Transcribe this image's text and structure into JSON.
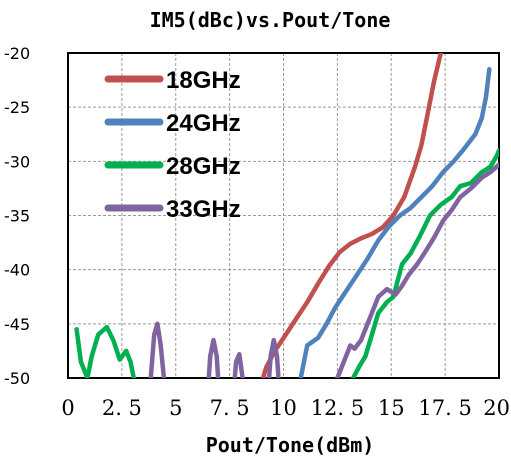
{
  "chart_data": {
    "type": "line",
    "title": "IM5(dBc)vs.Pout/Tone",
    "xlabel": "Pout/Tone(dBm)",
    "ylabel": "",
    "xlim": [
      0,
      20
    ],
    "ylim": [
      -50,
      -20
    ],
    "xticks": [
      0,
      2.5,
      5,
      7.5,
      10,
      12.5,
      15,
      17.5,
      20
    ],
    "xtick_labels": [
      "0",
      "2. 5",
      "5",
      "7. 5",
      "10",
      "12. 5",
      "15",
      "17. 5",
      "20"
    ],
    "yticks": [
      -50,
      -45,
      -40,
      -35,
      -30,
      -25,
      -20
    ],
    "ytick_labels": [
      "-50",
      "-45",
      "-40",
      "-35",
      "-30",
      "-25",
      "-20"
    ],
    "grid": true,
    "legend_position": "top-left",
    "series": [
      {
        "name": "18GHz",
        "color": "#c0504d",
        "points": [
          [
            8.9,
            -51
          ],
          [
            9.2,
            -49
          ],
          [
            9.6,
            -47.5
          ],
          [
            10.1,
            -46
          ],
          [
            10.6,
            -44.5
          ],
          [
            11.1,
            -43
          ],
          [
            11.6,
            -41.3
          ],
          [
            12.1,
            -39.7
          ],
          [
            12.6,
            -38.4
          ],
          [
            13.1,
            -37.6
          ],
          [
            13.6,
            -37.1
          ],
          [
            14.1,
            -36.7
          ],
          [
            14.6,
            -36.1
          ],
          [
            15.1,
            -35
          ],
          [
            15.6,
            -33.3
          ],
          [
            16.1,
            -30.5
          ],
          [
            16.4,
            -28.5
          ],
          [
            16.7,
            -25.5
          ],
          [
            17.0,
            -22.5
          ],
          [
            17.3,
            -20
          ]
        ]
      },
      {
        "name": "24GHz",
        "color": "#4f81bd",
        "points": [
          [
            10.7,
            -51
          ],
          [
            10.9,
            -49
          ],
          [
            11.1,
            -47
          ],
          [
            11.6,
            -46.3
          ],
          [
            12.0,
            -45
          ],
          [
            12.4,
            -43.5
          ],
          [
            12.9,
            -42
          ],
          [
            13.4,
            -40.5
          ],
          [
            13.9,
            -39
          ],
          [
            14.4,
            -37.3
          ],
          [
            14.9,
            -36
          ],
          [
            15.4,
            -35
          ],
          [
            15.9,
            -34.3
          ],
          [
            16.4,
            -33.3
          ],
          [
            16.9,
            -32.3
          ],
          [
            17.4,
            -31
          ],
          [
            17.9,
            -30
          ],
          [
            18.4,
            -28.8
          ],
          [
            18.9,
            -27.5
          ],
          [
            19.2,
            -26
          ],
          [
            19.4,
            -24
          ],
          [
            19.55,
            -21.5
          ]
        ]
      },
      {
        "name": "28GHz",
        "color": "#00b050",
        "points": [
          [
            0.4,
            -45.5
          ],
          [
            0.6,
            -48.5
          ],
          [
            0.9,
            -50
          ],
          [
            1.1,
            -48
          ],
          [
            1.4,
            -46
          ],
          [
            1.8,
            -45.3
          ],
          [
            2.1,
            -46.5
          ],
          [
            2.4,
            -48.3
          ],
          [
            2.7,
            -47.5
          ],
          [
            2.9,
            -48.5
          ],
          [
            3.1,
            -50.5
          ],
          [
            13.1,
            -50.5
          ],
          [
            13.5,
            -49
          ],
          [
            13.8,
            -48
          ],
          [
            14.1,
            -46
          ],
          [
            14.4,
            -44
          ],
          [
            14.8,
            -43
          ],
          [
            15.1,
            -42.5
          ],
          [
            15.5,
            -39.5
          ],
          [
            15.9,
            -38.5
          ],
          [
            16.3,
            -37
          ],
          [
            16.8,
            -35
          ],
          [
            17.3,
            -34
          ],
          [
            17.8,
            -33.3
          ],
          [
            18.2,
            -32.3
          ],
          [
            18.7,
            -32
          ],
          [
            19.2,
            -31
          ],
          [
            19.6,
            -30.5
          ],
          [
            19.9,
            -29.5
          ],
          [
            20.0,
            -29
          ]
        ]
      },
      {
        "name": "33GHz",
        "color": "#8064a2",
        "points": [
          [
            3.8,
            -51
          ],
          [
            4.0,
            -46
          ],
          [
            4.15,
            -45
          ],
          [
            4.3,
            -47
          ],
          [
            4.5,
            -51
          ],
          [
            6.5,
            -51
          ],
          [
            6.6,
            -48
          ],
          [
            6.75,
            -46.5
          ],
          [
            6.9,
            -48
          ],
          [
            7.0,
            -51
          ],
          [
            7.7,
            -51
          ],
          [
            7.8,
            -48.5
          ],
          [
            7.95,
            -47.8
          ],
          [
            8.1,
            -50
          ],
          [
            8.2,
            -51
          ],
          [
            9.3,
            -51
          ],
          [
            9.4,
            -48
          ],
          [
            9.55,
            -46.5
          ],
          [
            9.7,
            -48
          ],
          [
            9.8,
            -51
          ],
          [
            12.2,
            -51
          ],
          [
            12.5,
            -50
          ],
          [
            12.8,
            -48.5
          ],
          [
            13.1,
            -47
          ],
          [
            13.3,
            -47.3
          ],
          [
            13.6,
            -46.5
          ],
          [
            14.0,
            -44.5
          ],
          [
            14.4,
            -42.5
          ],
          [
            14.8,
            -41.8
          ],
          [
            15.2,
            -42.3
          ],
          [
            15.5,
            -41.5
          ],
          [
            15.8,
            -40.5
          ],
          [
            16.2,
            -39.5
          ],
          [
            16.6,
            -38.3
          ],
          [
            17.0,
            -37
          ],
          [
            17.4,
            -35.5
          ],
          [
            17.8,
            -34.5
          ],
          [
            18.2,
            -33.3
          ],
          [
            18.7,
            -32.5
          ],
          [
            19.2,
            -31.5
          ],
          [
            19.6,
            -31
          ],
          [
            20.0,
            -30.3
          ]
        ]
      }
    ]
  }
}
